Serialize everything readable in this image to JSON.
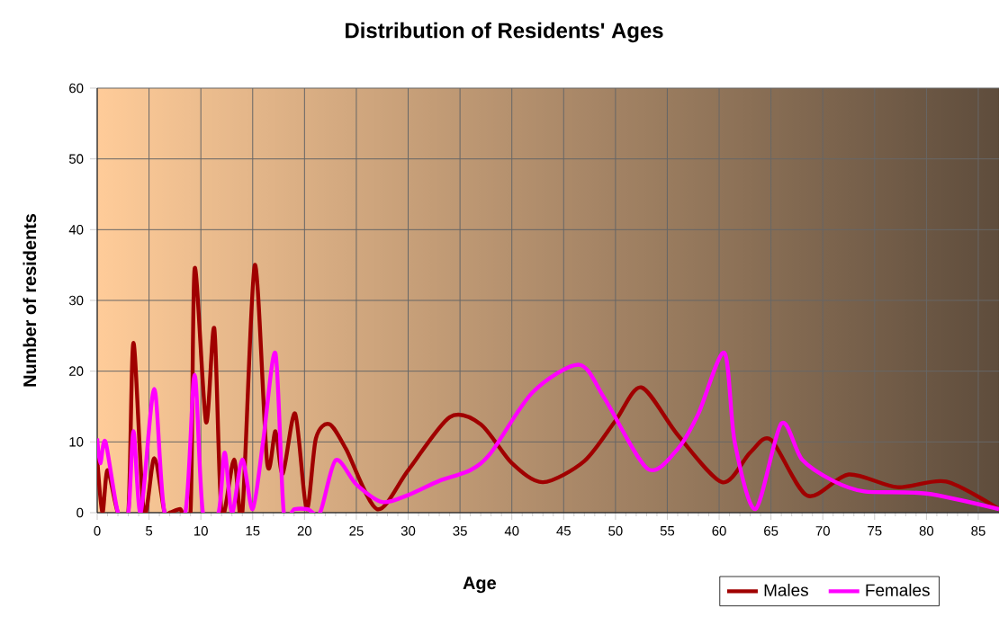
{
  "chart_data": {
    "type": "line",
    "title": "Distribution of Residents' Ages",
    "xlabel": "Age",
    "ylabel": "Number of residents",
    "xlim": [
      0,
      87
    ],
    "xticks": [
      0,
      5,
      10,
      15,
      20,
      25,
      30,
      35,
      40,
      45,
      50,
      55,
      60,
      65,
      70,
      75,
      80,
      85
    ],
    "ylim": [
      0,
      60
    ],
    "yticks": [
      0,
      10,
      20,
      30,
      40,
      50,
      60
    ],
    "grid": true,
    "legend": "bottom right",
    "marker": "none",
    "line_style": "solid",
    "series": [
      {
        "name": "Males",
        "color": "#a00000",
        "x": [
          0,
          0.5,
          1,
          2,
          3,
          3.5,
          4.5,
          5.5,
          6.5,
          7,
          8,
          9,
          9.4,
          10.5,
          11.3,
          12,
          13.2,
          14,
          15.2,
          16.4,
          17.2,
          17.9,
          19.1,
          20.2,
          21.1,
          22.4,
          24,
          27,
          30,
          34,
          37,
          40,
          43,
          47,
          50,
          52.5,
          56,
          60.3,
          63,
          65,
          68.5,
          72.5,
          77.2,
          81.9,
          87
        ],
        "values": [
          7.7,
          0,
          6,
          0,
          0,
          24,
          0,
          7.7,
          0,
          0,
          0.5,
          0,
          34.5,
          12.8,
          26,
          0,
          7.5,
          0,
          35,
          7,
          11.5,
          5.5,
          14,
          0.5,
          10.5,
          12.5,
          9,
          0.5,
          6,
          13.5,
          12.5,
          7,
          4.3,
          7.3,
          13,
          17.7,
          11,
          4.3,
          8.5,
          10.3,
          2.4,
          5.4,
          3.6,
          4.4,
          0.5
        ]
      },
      {
        "name": "Females",
        "color": "#ff00ff",
        "x": [
          0,
          0.3,
          0.8,
          2,
          3,
          3.5,
          4.2,
          5.5,
          6.5,
          8.5,
          9.4,
          10.2,
          11.7,
          12.3,
          13,
          14,
          15,
          16,
          17.2,
          18,
          19,
          20.3,
          21.5,
          23,
          25,
          27.5,
          30,
          33,
          36,
          38,
          42,
          46.5,
          49,
          53.1,
          56,
          58,
          60.5,
          61.5,
          63.5,
          66,
          68,
          71,
          74,
          80,
          87
        ],
        "values": [
          10.5,
          7,
          10,
          0,
          0,
          11.5,
          0,
          17.5,
          0,
          0,
          19.5,
          0,
          0,
          8.5,
          0,
          7.5,
          0.5,
          10,
          22.5,
          0,
          0.5,
          0.5,
          0,
          7.4,
          4,
          1.5,
          2.5,
          4.5,
          6,
          8.5,
          17,
          20.9,
          16,
          6.2,
          9,
          14,
          22.6,
          10,
          0.5,
          12.6,
          7.5,
          4.5,
          3,
          2.7,
          0.5
        ]
      }
    ]
  }
}
